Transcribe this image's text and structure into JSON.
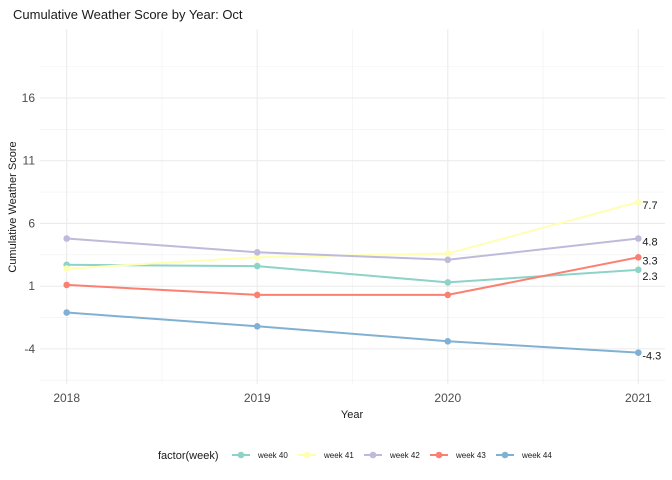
{
  "chart_data": {
    "type": "line",
    "title": "Cumulative Weather Score by Year: Oct",
    "xlabel": "Year",
    "ylabel": "Cumulative Weather Score",
    "x": [
      2018,
      2019,
      2020,
      2021
    ],
    "xlim": [
      2017.86,
      2021.14
    ],
    "ylim": [
      -6.8,
      21.5
    ],
    "yticks": [
      -4,
      1,
      6,
      11,
      16
    ],
    "grid": true,
    "legend": {
      "title": "factor(week)",
      "position": "bottom"
    },
    "series": [
      {
        "name": "week 40",
        "color": "#8DD3C7",
        "values": [
          2.7,
          2.6,
          1.3,
          2.3
        ]
      },
      {
        "name": "week 41",
        "color": "#FFFFB3",
        "values": [
          2.4,
          3.3,
          3.6,
          7.7
        ]
      },
      {
        "name": "week 42",
        "color": "#BEBADA",
        "values": [
          4.8,
          3.7,
          3.1,
          4.8
        ]
      },
      {
        "name": "week 43",
        "color": "#FB8072",
        "values": [
          1.1,
          0.3,
          0.3,
          3.3
        ]
      },
      {
        "name": "week 44",
        "color": "#80B1D3",
        "values": [
          -1.1,
          -2.2,
          -3.4,
          -4.3
        ]
      }
    ],
    "end_labels": [
      "7.7",
      "4.8",
      "3.3",
      "2.3",
      "-4.3"
    ]
  }
}
